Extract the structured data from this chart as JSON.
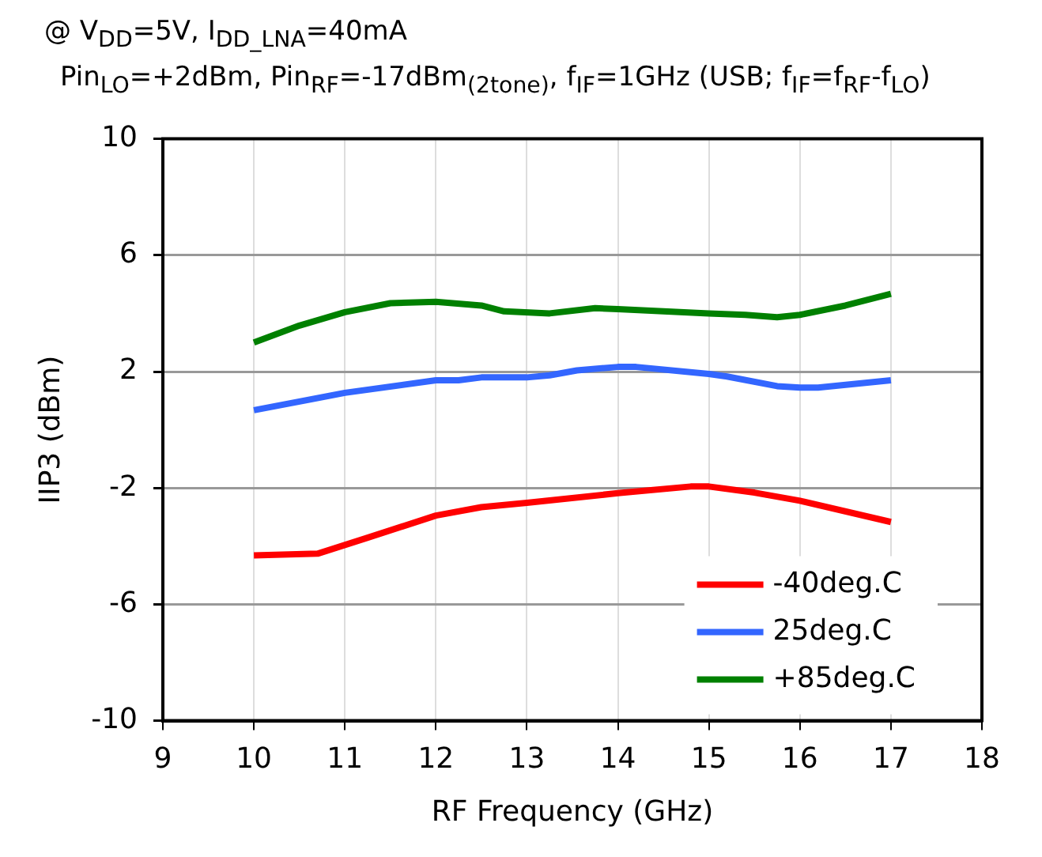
{
  "chart_data": {
    "type": "line",
    "title": "@ V$_{DD}$=5V, I$_{DD_LNA}$=40mA",
    "subtitle": "Pin$_{LO}$=+2dBm, Pin$_{RF}$=-17dBm$_{(2tone)}$, f$_{IF}$=1GHz (USB; f$_{IF}$=f$_{RF}$-f$_{LO}$)",
    "xlabel": "RF Frequency (GHz)",
    "ylabel": "IIP3 (dBm)",
    "xlim": [
      9,
      18
    ],
    "xticks": [
      9,
      10,
      11,
      12,
      13,
      14,
      15,
      16,
      17,
      18
    ],
    "ylim": [
      -10,
      10
    ],
    "yticks": [
      -10,
      -6,
      -2,
      2,
      6,
      10
    ],
    "grid": true,
    "legend": "bottom right",
    "marker": "none",
    "line_style": "solid",
    "series": [
      {
        "name": "-40deg.C",
        "color": "#ff0000",
        "x": [
          10,
          10.7,
          11.25,
          12,
          12.5,
          13,
          14,
          14.8,
          15,
          15.5,
          16,
          17
        ],
        "values": [
          -4.32,
          -4.26,
          -3.71,
          -2.95,
          -2.66,
          -2.51,
          -2.18,
          -1.95,
          -1.95,
          -2.16,
          -2.44,
          -3.17
        ]
      },
      {
        "name": "25deg.C",
        "color": "#3366ff",
        "x": [
          10,
          11,
          12,
          12.25,
          12.5,
          13,
          13.25,
          13.55,
          14,
          14.2,
          15,
          15.2,
          15.75,
          16,
          16.2,
          17
        ],
        "values": [
          0.67,
          1.27,
          1.7,
          1.7,
          1.8,
          1.8,
          1.87,
          2.04,
          2.16,
          2.16,
          1.92,
          1.83,
          1.5,
          1.45,
          1.45,
          1.7
        ]
      },
      {
        "name": "+85deg.C",
        "color": "#008000",
        "x": [
          10,
          10.5,
          11,
          11.5,
          12,
          12.5,
          12.75,
          13.25,
          13.75,
          14,
          15,
          15.4,
          15.75,
          16,
          16.5,
          17
        ],
        "values": [
          3.0,
          3.58,
          4.04,
          4.35,
          4.4,
          4.27,
          4.07,
          4.0,
          4.18,
          4.15,
          4.0,
          3.95,
          3.87,
          3.95,
          4.27,
          4.67
        ]
      }
    ]
  }
}
